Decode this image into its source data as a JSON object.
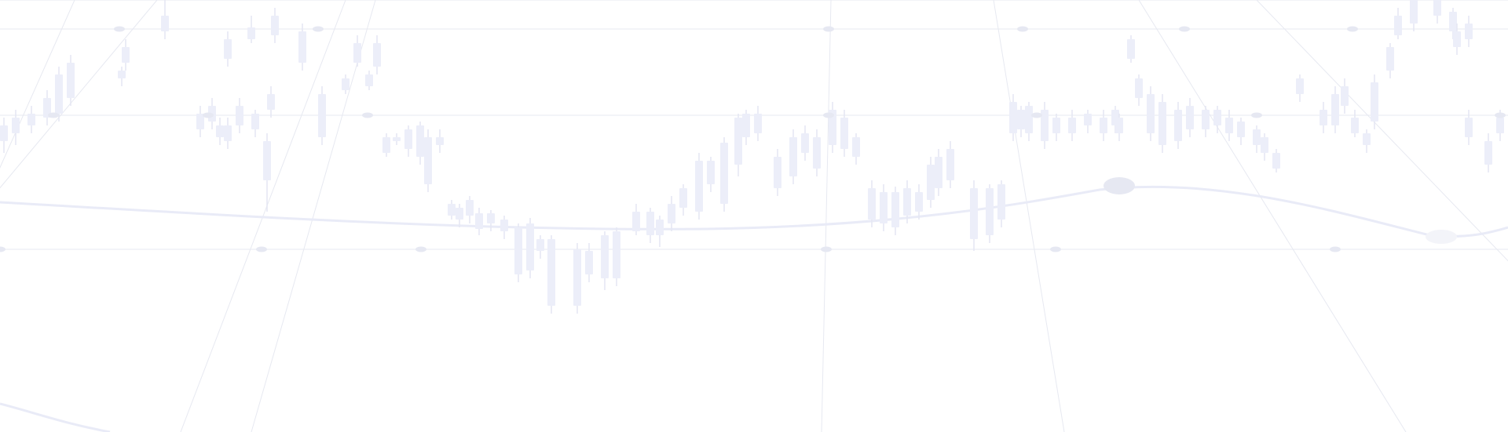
{
  "colors": {
    "background": "#ffffff",
    "grid": "#e7e9f1",
    "candle": "#eceef9",
    "wick": "#e4e6f2",
    "curve": "#e9ebf7",
    "node": "#e6e8f2"
  }
}
